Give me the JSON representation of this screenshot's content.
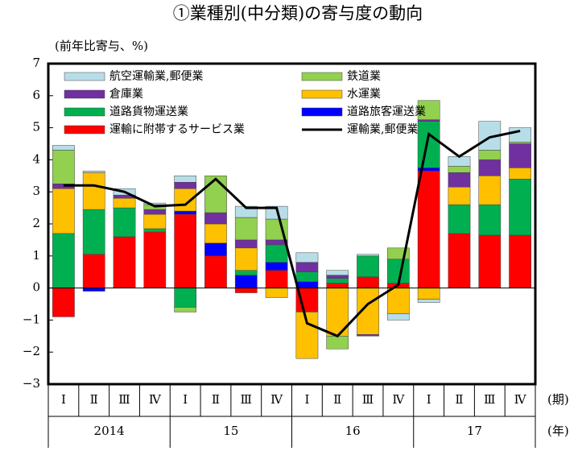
{
  "chart_data": {
    "type": "bar",
    "stacked": true,
    "title": "①業種別(中分類)の寄与度の動向",
    "y_axis_label": "(前年比寄与、%)",
    "x_unit_label": "(期)",
    "year_unit_label": "(年)",
    "categories": [
      "Ⅰ",
      "Ⅱ",
      "Ⅲ",
      "Ⅳ",
      "Ⅰ",
      "Ⅱ",
      "Ⅲ",
      "Ⅳ",
      "Ⅰ",
      "Ⅱ",
      "Ⅲ",
      "Ⅳ",
      "Ⅰ",
      "Ⅱ",
      "Ⅲ",
      "Ⅳ"
    ],
    "years": [
      "2014",
      "15",
      "16",
      "17"
    ],
    "ylim": [
      -3,
      7
    ],
    "yticks": [
      {
        "value": -3,
        "label": "−3"
      },
      {
        "value": -2,
        "label": "−2"
      },
      {
        "value": -1,
        "label": "−1"
      },
      0,
      1,
      2,
      3,
      4,
      5,
      6,
      7
    ],
    "series": [
      {
        "name": "運輸に附帯するサービス業",
        "color": "#ff0000",
        "values": [
          -0.9,
          1.05,
          1.6,
          1.75,
          2.3,
          1.0,
          -0.15,
          0.55,
          -0.75,
          0.15,
          0.35,
          0.15,
          3.65,
          1.7,
          1.65,
          1.65
        ]
      },
      {
        "name": "道路旅客運送業",
        "color": "#0000ff",
        "values": [
          0,
          -0.1,
          0,
          0,
          0.1,
          0.4,
          0.4,
          0.25,
          0.2,
          0,
          0,
          0,
          0.1,
          0,
          0,
          0
        ]
      },
      {
        "name": "道路貨物運送業",
        "color": "#00b050",
        "values": [
          1.7,
          1.4,
          0.9,
          0.1,
          -0.6,
          0,
          0.15,
          0.55,
          0.3,
          0.15,
          0.65,
          0.75,
          1.45,
          0.9,
          0.95,
          1.75
        ]
      },
      {
        "name": "水運業",
        "color": "#ffc000",
        "values": [
          1.4,
          1.15,
          0.3,
          0.45,
          0.7,
          0.6,
          0.7,
          -0.3,
          -1.45,
          -1.5,
          -1.45,
          -0.8,
          -0.35,
          0.55,
          0.9,
          0.35
        ]
      },
      {
        "name": "倉庫業",
        "color": "#7030a0",
        "values": [
          0.15,
          0,
          0.1,
          0.15,
          0.2,
          0.35,
          0.25,
          0.15,
          0.3,
          0.1,
          -0.05,
          0,
          0.05,
          0.45,
          0.5,
          0.75
        ]
      },
      {
        "name": "鉄道業",
        "color": "#92d050",
        "values": [
          1.05,
          0,
          0,
          0.15,
          -0.15,
          1.15,
          0.7,
          0.65,
          0,
          -0.4,
          0,
          0.35,
          0.6,
          0.2,
          0.3,
          0.05
        ]
      },
      {
        "name": "航空運輸業,郵便業",
        "color": "#b7dee8",
        "values": [
          0.15,
          0.05,
          0.2,
          0.05,
          0.2,
          0,
          0.35,
          0.4,
          0.3,
          0.15,
          0.05,
          -0.2,
          -0.1,
          0.3,
          0.9,
          0.45
        ]
      }
    ],
    "line": {
      "name": "運輸業,郵便業",
      "color": "#000000",
      "values": [
        3.2,
        3.2,
        3.0,
        2.55,
        2.6,
        3.4,
        2.5,
        2.5,
        -1.1,
        -1.5,
        -0.5,
        0.1,
        4.8,
        4.1,
        4.7,
        4.9
      ]
    }
  }
}
